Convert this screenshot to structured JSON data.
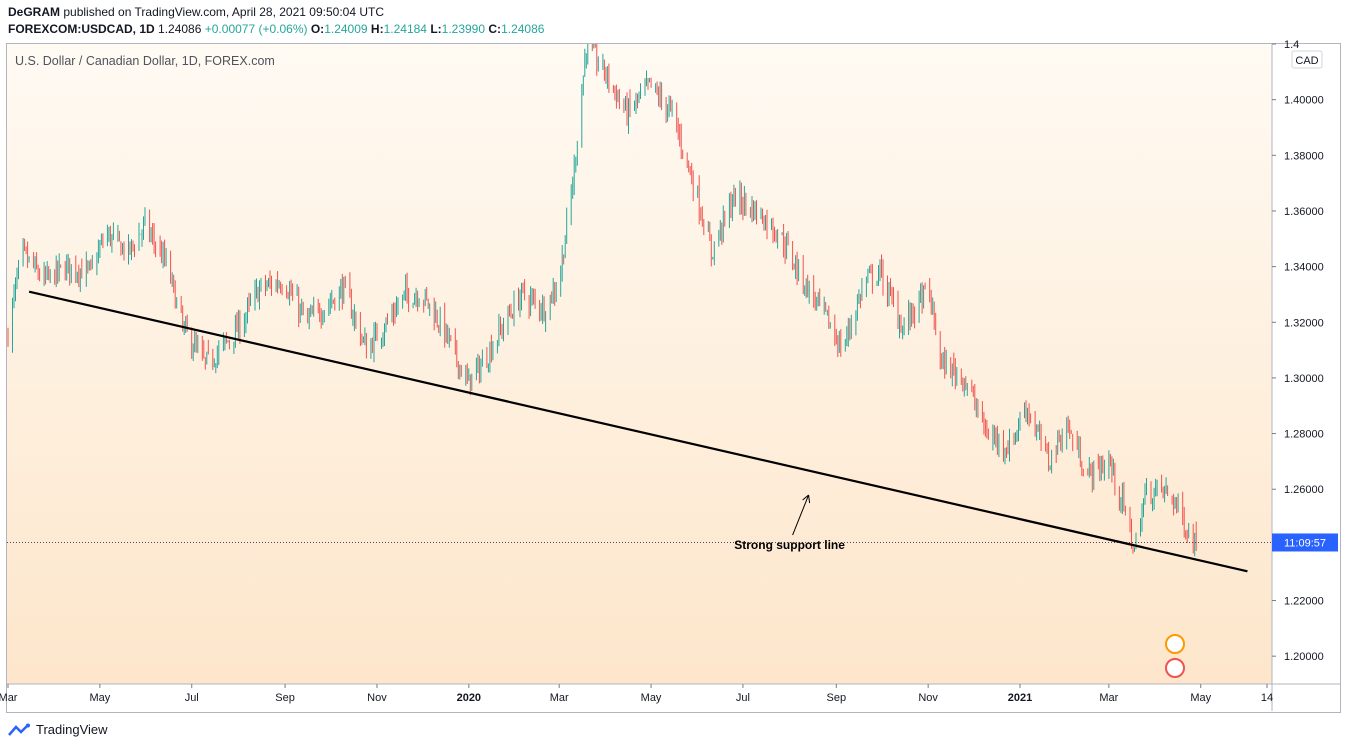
{
  "header": {
    "author": "DeGRAM",
    "published": " published on TradingView.com, April 28, 2021 09:50:04 UTC",
    "symbol": "FOREXCOM:USDCAD, 1D",
    "last": "1.24086",
    "change": "+0.00077 (+0.06%)",
    "o_label": "O:",
    "o_val": "1.24009",
    "h_label": "H:",
    "h_val": "1.24184",
    "l_label": "L:",
    "l_val": "1.23990",
    "c_label": "C:",
    "c_val": "1.24086"
  },
  "footer": {
    "brand": "TradingView"
  },
  "colors": {
    "up": "#26a69a",
    "down": "#ef5350",
    "line": "#000000",
    "bg_top": "#fffaf3",
    "bg_bottom": "#fde6cb"
  },
  "chart_data": {
    "type": "candlestick",
    "title": "U.S. Dollar / Canadian Dollar, 1D, FOREX.com",
    "currency": "CAD",
    "countdown": "11:09:57",
    "current_price": 1.24086,
    "ylim": [
      1.19,
      1.42
    ],
    "y_ticks": [
      "1.20000",
      "1.22000",
      "1.24000",
      "1.26000",
      "1.28000",
      "1.30000",
      "1.32000",
      "1.34000",
      "1.36000",
      "1.38000",
      "1.40000",
      "1.4"
    ],
    "x_ticks": [
      {
        "label": "Mar",
        "date": "2019-03-01"
      },
      {
        "label": "May",
        "date": "2019-05-01"
      },
      {
        "label": "Jul",
        "date": "2019-07-01"
      },
      {
        "label": "Sep",
        "date": "2019-09-01"
      },
      {
        "label": "Nov",
        "date": "2019-11-01"
      },
      {
        "label": "2020",
        "date": "2020-01-01",
        "bold": true
      },
      {
        "label": "Mar",
        "date": "2020-03-01"
      },
      {
        "label": "May",
        "date": "2020-05-01"
      },
      {
        "label": "Jul",
        "date": "2020-07-01"
      },
      {
        "label": "Sep",
        "date": "2020-09-01"
      },
      {
        "label": "Nov",
        "date": "2020-11-01"
      },
      {
        "label": "2021",
        "date": "2021-01-01",
        "bold": true
      },
      {
        "label": "Mar",
        "date": "2021-03-01"
      },
      {
        "label": "May",
        "date": "2021-05-01"
      },
      {
        "label": "14",
        "date": "2021-06-14"
      }
    ],
    "price_path": [
      [
        "2019-03-01",
        1.316
      ],
      [
        "2019-03-10",
        1.345
      ],
      [
        "2019-03-25",
        1.335
      ],
      [
        "2019-04-10",
        1.34
      ],
      [
        "2019-04-25",
        1.338
      ],
      [
        "2019-05-05",
        1.352
      ],
      [
        "2019-05-20",
        1.345
      ],
      [
        "2019-05-31",
        1.355
      ],
      [
        "2019-06-15",
        1.34
      ],
      [
        "2019-06-25",
        1.318
      ],
      [
        "2019-07-10",
        1.305
      ],
      [
        "2019-07-20",
        1.31
      ],
      [
        "2019-08-01",
        1.318
      ],
      [
        "2019-08-15",
        1.332
      ],
      [
        "2019-08-31",
        1.335
      ],
      [
        "2019-09-15",
        1.32
      ],
      [
        "2019-09-30",
        1.327
      ],
      [
        "2019-10-10",
        1.332
      ],
      [
        "2019-10-25",
        1.31
      ],
      [
        "2019-11-05",
        1.318
      ],
      [
        "2019-11-20",
        1.33
      ],
      [
        "2019-12-01",
        1.33
      ],
      [
        "2019-12-15",
        1.318
      ],
      [
        "2019-12-31",
        1.298
      ],
      [
        "2020-01-10",
        1.305
      ],
      [
        "2020-01-25",
        1.32
      ],
      [
        "2020-02-05",
        1.33
      ],
      [
        "2020-02-20",
        1.325
      ],
      [
        "2020-03-01",
        1.335
      ],
      [
        "2020-03-10",
        1.37
      ],
      [
        "2020-03-19",
        1.42
      ],
      [
        "2020-03-31",
        1.41
      ],
      [
        "2020-04-15",
        1.395
      ],
      [
        "2020-04-30",
        1.405
      ],
      [
        "2020-05-15",
        1.395
      ],
      [
        "2020-06-01",
        1.365
      ],
      [
        "2020-06-10",
        1.345
      ],
      [
        "2020-06-25",
        1.365
      ],
      [
        "2020-07-10",
        1.36
      ],
      [
        "2020-07-25",
        1.352
      ],
      [
        "2020-08-10",
        1.335
      ],
      [
        "2020-08-25",
        1.322
      ],
      [
        "2020-09-05",
        1.31
      ],
      [
        "2020-09-20",
        1.335
      ],
      [
        "2020-09-30",
        1.338
      ],
      [
        "2020-10-15",
        1.318
      ],
      [
        "2020-11-01",
        1.332
      ],
      [
        "2020-11-10",
        1.305
      ],
      [
        "2020-11-25",
        1.3
      ],
      [
        "2020-12-10",
        1.28
      ],
      [
        "2020-12-25",
        1.275
      ],
      [
        "2021-01-05",
        1.29
      ],
      [
        "2021-01-20",
        1.27
      ],
      [
        "2021-02-01",
        1.283
      ],
      [
        "2021-02-15",
        1.265
      ],
      [
        "2021-03-01",
        1.27
      ],
      [
        "2021-03-10",
        1.255
      ],
      [
        "2021-03-18",
        1.238
      ],
      [
        "2021-03-25",
        1.258
      ],
      [
        "2021-04-05",
        1.26
      ],
      [
        "2021-04-15",
        1.255
      ],
      [
        "2021-04-22",
        1.245
      ],
      [
        "2021-04-28",
        1.24086
      ]
    ],
    "trendline": [
      {
        "date": "2019-03-15",
        "price": 1.331
      },
      {
        "date": "2021-06-01",
        "price": 1.2305
      }
    ],
    "annotation": {
      "text": "Strong support line",
      "date": "2020-08-01",
      "price": 1.2385
    }
  }
}
